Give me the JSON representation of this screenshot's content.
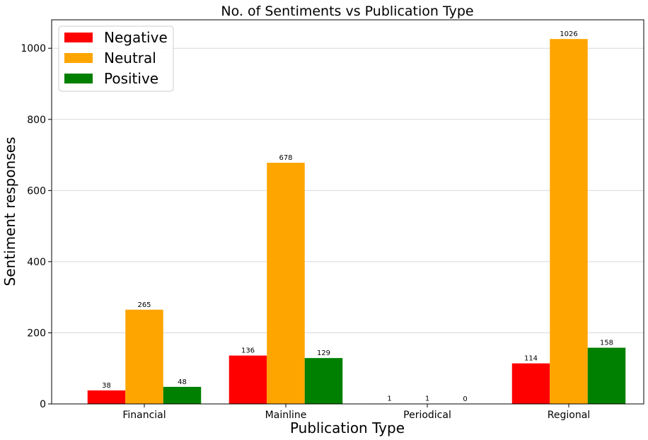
{
  "chart_data": {
    "type": "bar",
    "title": "No. of Sentiments vs Publication Type",
    "xlabel": "Publication Type",
    "ylabel": "Sentiment responses",
    "categories": [
      "Financial",
      "Mainline",
      "Periodical",
      "Regional"
    ],
    "series": [
      {
        "name": "Negative",
        "color": "#ff0000",
        "values": [
          38,
          136,
          1,
          114
        ]
      },
      {
        "name": "Neutral",
        "color": "#ffa500",
        "values": [
          265,
          678,
          1,
          1026
        ]
      },
      {
        "name": "Positive",
        "color": "#008000",
        "values": [
          48,
          129,
          0,
          158
        ]
      }
    ],
    "ylim": [
      0,
      1080
    ],
    "yticks": [
      0,
      200,
      400,
      600,
      800,
      1000
    ],
    "grid": "y",
    "legend": "top-left"
  }
}
